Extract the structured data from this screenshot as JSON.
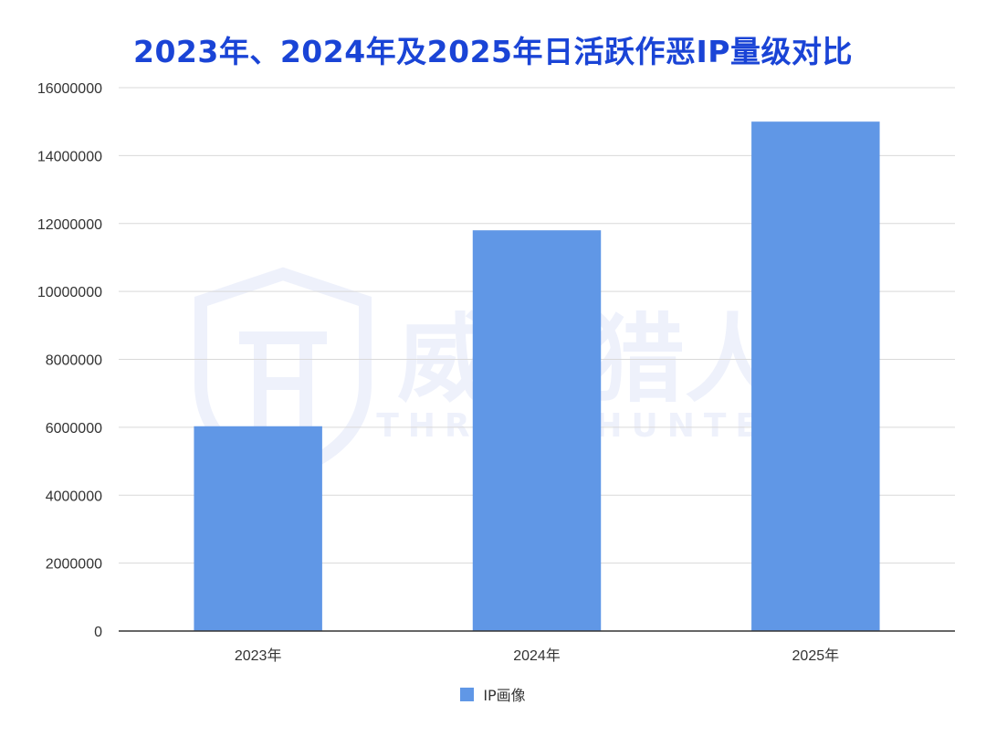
{
  "chart_data": {
    "type": "bar",
    "title": "2023年、2024年及2025年日活跃作恶IP量级对比",
    "categories": [
      "2023年",
      "2024年",
      "2025年"
    ],
    "series": [
      {
        "name": "IP画像",
        "values": [
          6030000,
          11800000,
          15000000
        ],
        "color": "#6097e6"
      }
    ],
    "ylim": [
      0,
      16000000
    ],
    "yticks": [
      "0",
      "2000000",
      "4000000",
      "6000000",
      "8000000",
      "10000000",
      "12000000",
      "14000000",
      "16000000"
    ],
    "grid": true,
    "legend": "bottom",
    "xlabel": "",
    "ylabel": ""
  },
  "watermark": {
    "brand_cn": "威胁猎人",
    "brand_en": "THREAT HUNTER",
    "logo_icon": "shield-th-logo"
  }
}
